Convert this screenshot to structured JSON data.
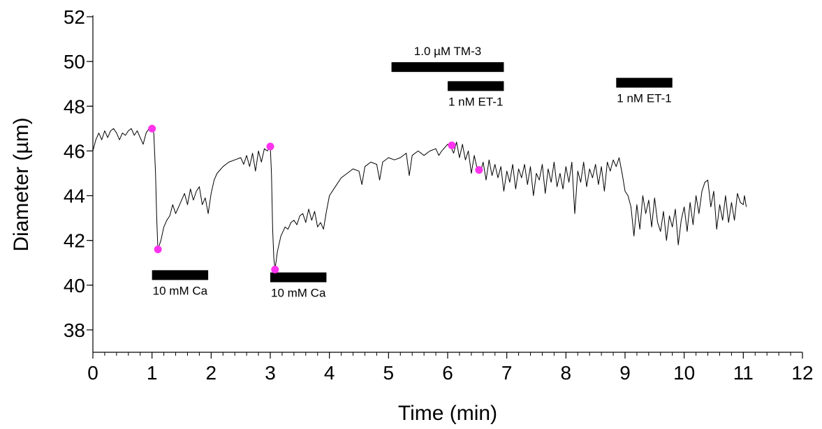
{
  "chart_data": {
    "type": "line",
    "title": "",
    "xlabel": "Time (min)",
    "ylabel": "Diameter (µm)",
    "xlim": [
      0,
      12
    ],
    "ylim": [
      37,
      52
    ],
    "x_ticks": [
      0,
      1,
      2,
      3,
      4,
      5,
      6,
      7,
      8,
      9,
      10,
      11,
      12
    ],
    "y_ticks": [
      38,
      40,
      42,
      44,
      46,
      48,
      50,
      52
    ],
    "grid": false,
    "legend": "none",
    "series": [
      {
        "color": "#000000",
        "points": [
          [
            0.0,
            46.0
          ],
          [
            0.05,
            46.5
          ],
          [
            0.1,
            46.8
          ],
          [
            0.15,
            46.5
          ],
          [
            0.2,
            46.9
          ],
          [
            0.25,
            46.6
          ],
          [
            0.3,
            46.9
          ],
          [
            0.35,
            47.0
          ],
          [
            0.4,
            46.8
          ],
          [
            0.45,
            46.5
          ],
          [
            0.5,
            46.8
          ],
          [
            0.55,
            46.7
          ],
          [
            0.6,
            46.9
          ],
          [
            0.65,
            47.0
          ],
          [
            0.7,
            46.7
          ],
          [
            0.75,
            46.9
          ],
          [
            0.8,
            46.6
          ],
          [
            0.85,
            46.3
          ],
          [
            0.9,
            46.8
          ],
          [
            0.95,
            47.0
          ],
          [
            1.0,
            47.0
          ],
          [
            1.03,
            46.8
          ],
          [
            1.06,
            45.0
          ],
          [
            1.08,
            43.0
          ],
          [
            1.1,
            41.6
          ],
          [
            1.15,
            42.0
          ],
          [
            1.2,
            42.6
          ],
          [
            1.25,
            42.9
          ],
          [
            1.3,
            43.1
          ],
          [
            1.35,
            43.6
          ],
          [
            1.4,
            43.2
          ],
          [
            1.45,
            43.5
          ],
          [
            1.5,
            43.8
          ],
          [
            1.55,
            44.1
          ],
          [
            1.6,
            43.6
          ],
          [
            1.65,
            44.3
          ],
          [
            1.7,
            43.8
          ],
          [
            1.75,
            44.2
          ],
          [
            1.8,
            44.4
          ],
          [
            1.85,
            43.6
          ],
          [
            1.9,
            43.9
          ],
          [
            1.95,
            43.2
          ],
          [
            2.0,
            44.1
          ],
          [
            2.05,
            44.7
          ],
          [
            2.1,
            45.0
          ],
          [
            2.2,
            45.3
          ],
          [
            2.3,
            45.5
          ],
          [
            2.4,
            45.6
          ],
          [
            2.5,
            45.7
          ],
          [
            2.55,
            45.4
          ],
          [
            2.6,
            45.8
          ],
          [
            2.65,
            45.3
          ],
          [
            2.7,
            45.9
          ],
          [
            2.75,
            45.1
          ],
          [
            2.8,
            46.0
          ],
          [
            2.85,
            45.5
          ],
          [
            2.9,
            46.1
          ],
          [
            2.95,
            46.0
          ],
          [
            3.0,
            46.2
          ],
          [
            3.02,
            45.0
          ],
          [
            3.04,
            42.5
          ],
          [
            3.06,
            41.2
          ],
          [
            3.08,
            40.7
          ],
          [
            3.12,
            41.5
          ],
          [
            3.18,
            42.2
          ],
          [
            3.25,
            42.6
          ],
          [
            3.3,
            42.5
          ],
          [
            3.35,
            42.8
          ],
          [
            3.4,
            42.9
          ],
          [
            3.45,
            42.7
          ],
          [
            3.5,
            43.1
          ],
          [
            3.55,
            43.2
          ],
          [
            3.6,
            42.8
          ],
          [
            3.65,
            43.4
          ],
          [
            3.7,
            42.9
          ],
          [
            3.75,
            43.3
          ],
          [
            3.8,
            42.6
          ],
          [
            3.85,
            42.8
          ],
          [
            3.9,
            42.5
          ],
          [
            3.95,
            43.3
          ],
          [
            4.0,
            44.0
          ],
          [
            4.1,
            44.4
          ],
          [
            4.2,
            44.8
          ],
          [
            4.3,
            45.0
          ],
          [
            4.4,
            45.2
          ],
          [
            4.5,
            45.1
          ],
          [
            4.55,
            44.5
          ],
          [
            4.6,
            45.3
          ],
          [
            4.7,
            45.5
          ],
          [
            4.8,
            45.4
          ],
          [
            4.85,
            44.7
          ],
          [
            4.9,
            45.5
          ],
          [
            5.0,
            45.7
          ],
          [
            5.1,
            45.6
          ],
          [
            5.2,
            45.7
          ],
          [
            5.3,
            45.9
          ],
          [
            5.35,
            44.9
          ],
          [
            5.4,
            45.8
          ],
          [
            5.5,
            46.0
          ],
          [
            5.6,
            45.8
          ],
          [
            5.7,
            46.0
          ],
          [
            5.8,
            46.1
          ],
          [
            5.85,
            45.8
          ],
          [
            5.9,
            46.0
          ],
          [
            6.0,
            46.3
          ],
          [
            6.05,
            46.2
          ],
          [
            6.1,
            45.9
          ],
          [
            6.15,
            46.4
          ],
          [
            6.2,
            45.7
          ],
          [
            6.25,
            46.3
          ],
          [
            6.3,
            45.6
          ],
          [
            6.35,
            46.0
          ],
          [
            6.4,
            45.0
          ],
          [
            6.45,
            45.8
          ],
          [
            6.5,
            45.2
          ],
          [
            6.55,
            45.0
          ],
          [
            6.6,
            45.5
          ],
          [
            6.65,
            44.7
          ],
          [
            6.7,
            45.6
          ],
          [
            6.75,
            44.9
          ],
          [
            6.8,
            45.4
          ],
          [
            6.85,
            44.8
          ],
          [
            6.9,
            45.3
          ],
          [
            6.95,
            44.2
          ],
          [
            7.0,
            45.1
          ],
          [
            7.05,
            44.6
          ],
          [
            7.1,
            45.4
          ],
          [
            7.15,
            44.3
          ],
          [
            7.2,
            45.2
          ],
          [
            7.25,
            44.8
          ],
          [
            7.3,
            45.4
          ],
          [
            7.35,
            44.5
          ],
          [
            7.4,
            45.3
          ],
          [
            7.45,
            44.0
          ],
          [
            7.5,
            45.0
          ],
          [
            7.55,
            44.7
          ],
          [
            7.6,
            45.4
          ],
          [
            7.65,
            44.1
          ],
          [
            7.7,
            45.2
          ],
          [
            7.75,
            44.6
          ],
          [
            7.8,
            45.5
          ],
          [
            7.85,
            44.4
          ],
          [
            7.9,
            45.0
          ],
          [
            7.95,
            44.3
          ],
          [
            8.0,
            45.3
          ],
          [
            8.05,
            44.6
          ],
          [
            8.1,
            45.5
          ],
          [
            8.15,
            43.2
          ],
          [
            8.2,
            45.1
          ],
          [
            8.25,
            44.6
          ],
          [
            8.3,
            45.5
          ],
          [
            8.35,
            44.4
          ],
          [
            8.4,
            45.2
          ],
          [
            8.45,
            44.8
          ],
          [
            8.5,
            45.4
          ],
          [
            8.55,
            44.5
          ],
          [
            8.6,
            45.3
          ],
          [
            8.65,
            44.2
          ],
          [
            8.7,
            45.5
          ],
          [
            8.75,
            45.1
          ],
          [
            8.8,
            45.6
          ],
          [
            8.85,
            45.3
          ],
          [
            8.9,
            45.7
          ],
          [
            8.95,
            45.0
          ],
          [
            9.0,
            44.2
          ],
          [
            9.05,
            44.0
          ],
          [
            9.1,
            43.5
          ],
          [
            9.15,
            42.2
          ],
          [
            9.2,
            43.6
          ],
          [
            9.25,
            42.5
          ],
          [
            9.3,
            44.0
          ],
          [
            9.35,
            43.2
          ],
          [
            9.4,
            43.8
          ],
          [
            9.45,
            42.6
          ],
          [
            9.5,
            43.9
          ],
          [
            9.55,
            42.8
          ],
          [
            9.6,
            42.4
          ],
          [
            9.65,
            43.3
          ],
          [
            9.7,
            42.0
          ],
          [
            9.75,
            43.1
          ],
          [
            9.8,
            42.6
          ],
          [
            9.85,
            43.4
          ],
          [
            9.9,
            41.8
          ],
          [
            9.95,
            42.9
          ],
          [
            10.0,
            43.5
          ],
          [
            10.05,
            42.4
          ],
          [
            10.1,
            43.7
          ],
          [
            10.15,
            42.7
          ],
          [
            10.2,
            44.0
          ],
          [
            10.25,
            43.2
          ],
          [
            10.3,
            44.2
          ],
          [
            10.35,
            44.6
          ],
          [
            10.4,
            44.7
          ],
          [
            10.45,
            43.5
          ],
          [
            10.5,
            44.2
          ],
          [
            10.55,
            42.5
          ],
          [
            10.6,
            43.6
          ],
          [
            10.65,
            42.9
          ],
          [
            10.7,
            44.0
          ],
          [
            10.75,
            42.8
          ],
          [
            10.8,
            43.7
          ],
          [
            10.85,
            42.9
          ],
          [
            10.9,
            44.1
          ],
          [
            10.95,
            43.7
          ],
          [
            11.0,
            43.6
          ],
          [
            11.02,
            44.0
          ],
          [
            11.05,
            43.5
          ]
        ]
      }
    ],
    "markers": {
      "color": "#ff33ee",
      "points": [
        [
          1.0,
          47.0
        ],
        [
          1.1,
          41.6
        ],
        [
          3.0,
          46.2
        ],
        [
          3.08,
          40.7
        ],
        [
          6.07,
          46.25
        ],
        [
          6.53,
          45.15
        ]
      ]
    },
    "annotations": [
      {
        "label": "10 mM Ca",
        "x_start": 1.0,
        "x_end": 1.95,
        "y": 40.45,
        "label_position": "below"
      },
      {
        "label": "10 mM Ca",
        "x_start": 3.0,
        "x_end": 3.95,
        "y": 40.35,
        "label_position": "below"
      },
      {
        "label": "1.0 µM TM-3",
        "x_start": 5.05,
        "x_end": 6.95,
        "y": 49.75,
        "label_position": "above"
      },
      {
        "label": "1 nM ET-1",
        "x_start": 6.0,
        "x_end": 6.95,
        "y": 48.9,
        "label_position": "below"
      },
      {
        "label": "1 nM ET-1",
        "x_start": 8.85,
        "x_end": 9.8,
        "y": 49.05,
        "label_position": "below"
      }
    ]
  }
}
